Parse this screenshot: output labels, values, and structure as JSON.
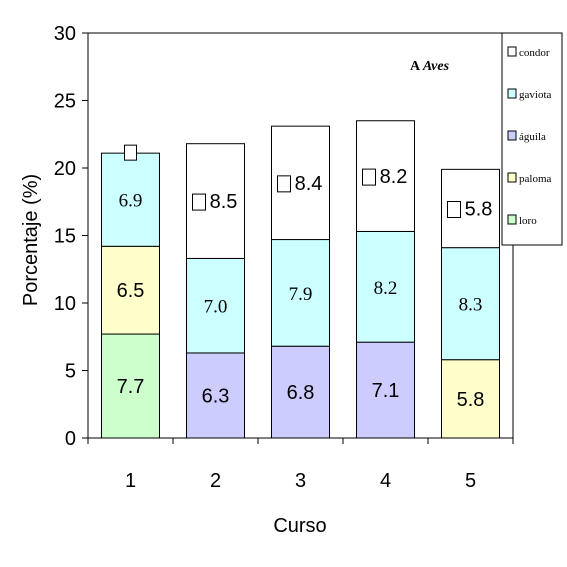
{
  "chart_data": {
    "type": "bar",
    "stacked": true,
    "title": "",
    "annotation": {
      "prefix": "A",
      "emphasis": "Aves"
    },
    "xlabel": "Curso",
    "ylabel": "Porcentaje (%)",
    "ylim": [
      0,
      30
    ],
    "yticks": [
      0,
      5,
      10,
      15,
      20,
      25,
      30
    ],
    "categories": [
      "1",
      "2",
      "3",
      "4",
      "5"
    ],
    "grid": false,
    "legend_position": "right",
    "legend": [
      "condor",
      "gaviota",
      "águila",
      "paloma",
      "loro"
    ],
    "colors": {
      "condor": "#ffffff",
      "gaviota": "#ccffff",
      "águila": "#ccccff",
      "paloma": "#ffffcc",
      "loro": "#ccffcc"
    },
    "stacks": [
      [
        {
          "series": "loro",
          "value": 7.7,
          "label": "7.7",
          "font": "sans"
        },
        {
          "series": "paloma",
          "value": 6.5,
          "label": "6.5",
          "font": "sans"
        },
        {
          "series": "gaviota",
          "value": 6.9,
          "label": "6.9",
          "font": "serif"
        }
      ],
      [
        {
          "series": "águila",
          "value": 6.3,
          "label": "6.3",
          "font": "sans"
        },
        {
          "series": "gaviota",
          "value": 7.0,
          "label": "7.0",
          "font": "serif"
        },
        {
          "series": "condor",
          "value": 8.5,
          "label": "8.5",
          "font": "sans"
        }
      ],
      [
        {
          "series": "águila",
          "value": 6.8,
          "label": "6.8",
          "font": "sans"
        },
        {
          "series": "gaviota",
          "value": 7.9,
          "label": "7.9",
          "font": "serif"
        },
        {
          "series": "condor",
          "value": 8.4,
          "label": "8.4",
          "font": "sans"
        }
      ],
      [
        {
          "series": "águila",
          "value": 7.1,
          "label": "7.1",
          "font": "sans"
        },
        {
          "series": "gaviota",
          "value": 8.2,
          "label": "8.2",
          "font": "serif"
        },
        {
          "series": "condor",
          "value": 8.2,
          "label": "8.2",
          "font": "sans"
        }
      ],
      [
        {
          "series": "paloma",
          "value": 5.8,
          "label": "5.8",
          "font": "sans"
        },
        {
          "series": "gaviota",
          "value": 8.3,
          "label": "8.3",
          "font": "serif"
        },
        {
          "series": "condor",
          "value": 5.8,
          "label": "5.8",
          "font": "sans"
        }
      ]
    ],
    "top_markers": [
      {
        "category": "1",
        "value": 21.1
      }
    ]
  }
}
